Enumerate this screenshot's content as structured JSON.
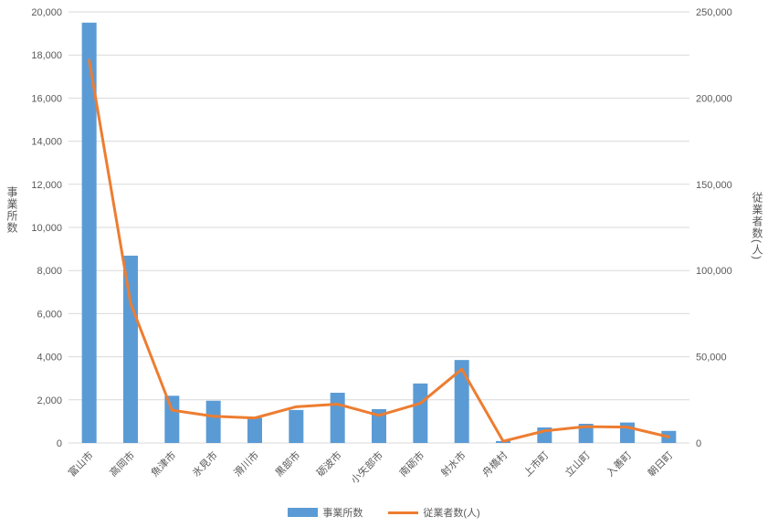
{
  "chart_data": {
    "type": "bar",
    "subtype": "combo-bar-line-dual-axis",
    "categories": [
      "富山市",
      "高岡市",
      "魚津市",
      "氷見市",
      "滑川市",
      "黒部市",
      "砺波市",
      "小矢部市",
      "南砺市",
      "射水市",
      "舟橋村",
      "上市町",
      "立山町",
      "入善町",
      "朝日町"
    ],
    "series": [
      {
        "name": "事業所数",
        "type": "bar",
        "axis": "left",
        "color": "#5B9BD5",
        "values": [
          19500,
          8690,
          2190,
          1960,
          1170,
          1530,
          2330,
          1570,
          2760,
          3850,
          90,
          720,
          890,
          950,
          560
        ]
      },
      {
        "name": "従業者数(人)",
        "type": "line",
        "axis": "right",
        "color": "#ED7D31",
        "values": [
          222000,
          81000,
          19000,
          15500,
          14500,
          21000,
          22500,
          16000,
          23000,
          42800,
          1000,
          7000,
          9500,
          9200,
          3500
        ]
      }
    ],
    "left_axis": {
      "title": "事業所数",
      "min": 0,
      "max": 20000,
      "step": 2000,
      "tick_labels": [
        "0",
        "2,000",
        "4,000",
        "6,000",
        "8,000",
        "10,000",
        "12,000",
        "14,000",
        "16,000",
        "18,000",
        "20,000"
      ]
    },
    "right_axis": {
      "title": "従業者数(人)",
      "min": 0,
      "max": 250000,
      "step": 50000,
      "tick_labels": [
        "0",
        "50,000",
        "100,000",
        "150,000",
        "200,000",
        "250,000"
      ]
    },
    "grid": true,
    "legend_position": "bottom"
  },
  "legend": {
    "bar_label": "事業所数",
    "line_label": "従業者数(人)"
  },
  "colors": {
    "bar": "#5B9BD5",
    "line": "#ED7D31",
    "grid": "#D9D9D9",
    "text": "#595959",
    "background": "#FFFFFF"
  }
}
